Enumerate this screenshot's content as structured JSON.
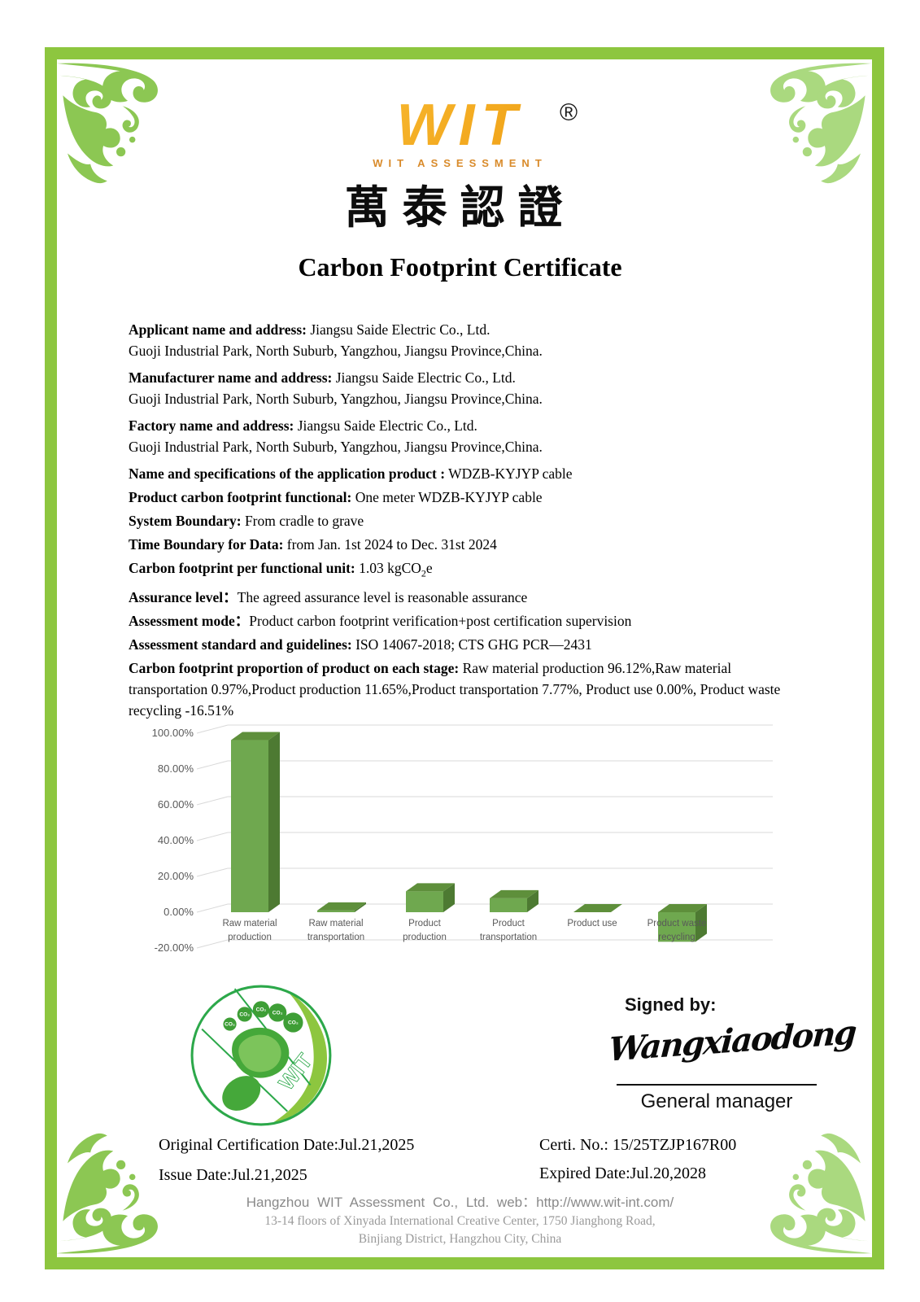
{
  "logo": {
    "wit": "WIT",
    "registered": "®",
    "subtitle": "WIT ASSESSMENT",
    "chinese": "萬泰認證"
  },
  "title": "Carbon Footprint Certificate",
  "addresses": [
    {
      "label": "Applicant name and address:",
      "value": " Jiangsu Saide Electric Co., Ltd.",
      "line2": "Guoji Industrial Park, North Suburb, Yangzhou, Jiangsu Province,China."
    },
    {
      "label": "Manufacturer name and address:",
      "value": " Jiangsu Saide Electric Co., Ltd.",
      "line2": "Guoji Industrial Park, North Suburb, Yangzhou, Jiangsu Province,China."
    },
    {
      "label": "Factory name and address:",
      "value": " Jiangsu Saide Electric Co., Ltd.",
      "line2": "Guoji Industrial Park, North Suburb, Yangzhou, Jiangsu Province,China."
    }
  ],
  "specs": [
    {
      "label": "Name and specifications of the application product :",
      "value": " WDZB-KYJYP cable"
    },
    {
      "label": "Product carbon footprint functional:",
      "value": " One meter WDZB-KYJYP cable"
    },
    {
      "label": "System Boundary:",
      "value": " From cradle to grave"
    },
    {
      "label": "Time Boundary for Data:",
      "value": " from Jan. 1st 2024 to Dec. 31st 2024"
    }
  ],
  "cf_unit": {
    "label": "Carbon footprint per functional unit:",
    "value_pre": " 1.03 kgCO",
    "sub": "2",
    "value_post": "e"
  },
  "post": [
    {
      "label": "Assurance level：",
      "value": "The agreed assurance level is reasonable assurance"
    },
    {
      "label": "Assessment mode：",
      "value": "Product carbon footprint verification+post certification supervision"
    },
    {
      "label": "Assessment standard and guidelines:",
      "value": " ISO 14067-2018; CTS GHG PCR—2431"
    },
    {
      "label": "Carbon footprint proportion of product on each stage:",
      "value": " Raw material production 96.12%,Raw material transportation 0.97%,Product production 11.65%,Product transportation 7.77%, Product use 0.00%, Product waste recycling -16.51%"
    }
  ],
  "chart_data": {
    "type": "bar",
    "style": "3d",
    "title": "",
    "xlabel": "",
    "ylabel": "",
    "categories": [
      "Raw material\nproduction",
      "Raw material\ntransportation",
      "Product\nproduction",
      "Product\ntransportation",
      "Product use",
      "Product waste\nrecycling"
    ],
    "values": [
      96.12,
      0.97,
      11.65,
      7.77,
      0.0,
      -16.51
    ],
    "ylim": [
      -20,
      100
    ],
    "ytick_step": 20,
    "tick_labels": [
      "100.00%",
      "80.00%",
      "60.00%",
      "40.00%",
      "20.00%",
      "0.00%",
      "-20.00%"
    ],
    "grid": true,
    "legend": false,
    "bar_colors": {
      "front": "#6fa84f",
      "top": "#5e8f3b",
      "side": "#4d7a32"
    },
    "grid_color": "#d9d9d9",
    "axis_text_color": "#595959"
  },
  "eco_logo": {
    "wit_text": "WIT",
    "toe_text": "CO₂"
  },
  "signature": {
    "signed_by": "Signed by:",
    "name": "Wangxiaodong",
    "role": "General manager"
  },
  "dates": {
    "original": "Original Certification Date:Jul.21,2025",
    "issue": "Issue Date:Jul.21,2025",
    "cert_no": "Certi. No.: 15/25TZJP167R00",
    "expired": "Expired Date:Jul.20,2028"
  },
  "footer": {
    "line1": "Hangzhou WIT Assessment Co., Ltd. web：http://www.wit-int.com/",
    "line2": "13-14 floors of Xinyada International Creative Center, 1750 Jianghong Road,",
    "line3": "Binjiang District, Hangzhou City, China"
  },
  "colors": {
    "border_green": "#8dc63f",
    "flourish_green": "#8cc753",
    "flourish_light": "#aad97f",
    "logo_gold_light": "#ffd24a",
    "logo_gold_dark": "#e07b00",
    "logo_orange": "#d98b2b",
    "footer_gray": "#8a8a8a",
    "eco_green": "#2ca84a",
    "eco_light": "#8dc63f"
  }
}
